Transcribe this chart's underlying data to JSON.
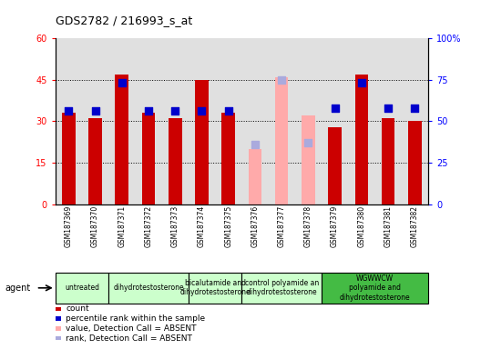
{
  "title": "GDS2782 / 216993_s_at",
  "samples": [
    "GSM187369",
    "GSM187370",
    "GSM187371",
    "GSM187372",
    "GSM187373",
    "GSM187374",
    "GSM187375",
    "GSM187376",
    "GSM187377",
    "GSM187378",
    "GSM187379",
    "GSM187380",
    "GSM187381",
    "GSM187382"
  ],
  "count_values": [
    33,
    31,
    47,
    33,
    31,
    45,
    33,
    null,
    null,
    null,
    28,
    47,
    31,
    30
  ],
  "absent_value_values": [
    null,
    null,
    null,
    null,
    null,
    null,
    null,
    20,
    46,
    32,
    null,
    null,
    null,
    null
  ],
  "percentile_values": [
    56,
    56,
    73,
    56,
    56,
    56,
    56,
    null,
    null,
    null,
    58,
    73,
    58,
    58
  ],
  "absent_rank_values": [
    null,
    null,
    null,
    null,
    null,
    null,
    null,
    36,
    75,
    37,
    null,
    null,
    null,
    null
  ],
  "ylim_left": [
    0,
    60
  ],
  "ylim_right": [
    0,
    100
  ],
  "yticks_left": [
    0,
    15,
    30,
    45,
    60
  ],
  "yticks_right": [
    0,
    25,
    50,
    75,
    100
  ],
  "ytick_labels_left": [
    "0",
    "15",
    "30",
    "45",
    "60"
  ],
  "ytick_labels_right": [
    "0",
    "25",
    "50",
    "75",
    "100%"
  ],
  "groups": [
    {
      "label": "untreated",
      "start": 0,
      "end": 2,
      "color": "#ccffcc"
    },
    {
      "label": "dihydrotestosterone",
      "start": 2,
      "end": 5,
      "color": "#ccffcc"
    },
    {
      "label": "bicalutamide and\ndihydrotestosterone",
      "start": 5,
      "end": 7,
      "color": "#ccffcc"
    },
    {
      "label": "control polyamide an\ndihydrotestosterone",
      "start": 7,
      "end": 10,
      "color": "#ccffcc"
    },
    {
      "label": "WGWWCW\npolyamide and\ndihydrotestosterone",
      "start": 10,
      "end": 14,
      "color": "#44bb44"
    }
  ],
  "bar_color": "#cc0000",
  "absent_bar_color": "#ffaaaa",
  "dot_color": "#0000cc",
  "absent_dot_color": "#aaaadd",
  "plot_bg": "#e0e0e0",
  "bar_width": 0.25,
  "dot_size": 30,
  "agent_label": "agent",
  "legend_items": [
    {
      "label": "count",
      "color": "#cc0000"
    },
    {
      "label": "percentile rank within the sample",
      "color": "#0000cc"
    },
    {
      "label": "value, Detection Call = ABSENT",
      "color": "#ffaaaa"
    },
    {
      "label": "rank, Detection Call = ABSENT",
      "color": "#aaaadd"
    }
  ]
}
